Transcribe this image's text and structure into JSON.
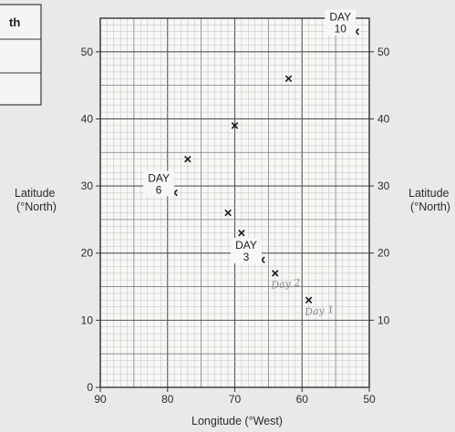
{
  "table": {
    "header": "th"
  },
  "chart_data": {
    "type": "scatter",
    "xlabel": "Longitude (°West)",
    "ylabel": "Latitude\n(°North)",
    "ylabel_right": "Latitude\n(°North)",
    "xlim": [
      90,
      50
    ],
    "ylim": [
      0,
      55
    ],
    "x_ticks": [
      90,
      80,
      70,
      60,
      50
    ],
    "y_ticks": [
      0,
      10,
      20,
      30,
      40,
      50
    ],
    "y_ticks_right": [
      10,
      20,
      30,
      40,
      50
    ],
    "grid": true,
    "points": [
      {
        "x": 59,
        "y": 13
      },
      {
        "x": 64,
        "y": 17
      },
      {
        "x": 66,
        "y": 19
      },
      {
        "x": 69,
        "y": 23
      },
      {
        "x": 71,
        "y": 26
      },
      {
        "x": 79,
        "y": 29
      },
      {
        "x": 77,
        "y": 34
      },
      {
        "x": 70,
        "y": 39
      },
      {
        "x": 62,
        "y": 46
      },
      {
        "x": 52,
        "y": 53
      }
    ],
    "printed_labels": [
      {
        "text": "DAY\n10",
        "x": 52,
        "y": 53
      },
      {
        "text": "DAY\n6",
        "x": 79,
        "y": 29
      },
      {
        "text": "DAY\n3",
        "x": 66,
        "y": 19
      }
    ],
    "handwritten_labels": [
      {
        "text": "Day 2",
        "x": 64,
        "y": 17
      },
      {
        "text": "Day 1",
        "x": 59,
        "y": 13
      }
    ]
  }
}
